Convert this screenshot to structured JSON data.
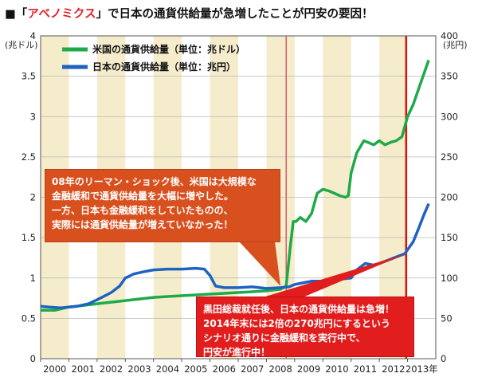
{
  "title": {
    "prefix": "■「",
    "highlight": "アベノミクス",
    "suffix": "」で日本の通貨供給量が急増したことが円安の要因！"
  },
  "chart_data": {
    "type": "line",
    "left_axis": {
      "unit": "(兆ドル)",
      "ylim": [
        0,
        4
      ],
      "ticks": [
        "0",
        "0.5",
        "1",
        "1.5",
        "2",
        "2.5",
        "3",
        "3.5",
        "4"
      ]
    },
    "right_axis": {
      "unit": "(兆円)",
      "ylim": [
        0,
        400
      ],
      "ticks": [
        "0",
        "50",
        "100",
        "150",
        "200",
        "250",
        "300",
        "350",
        "400"
      ]
    },
    "xlim": [
      2000,
      2014
    ],
    "x_ticks": [
      "2000",
      "2001",
      "2002",
      "2003",
      "2004",
      "2005",
      "2006",
      "2007",
      "2008",
      "2009",
      "2010",
      "2011",
      "2012",
      "2013年"
    ],
    "series": [
      {
        "name": "米国の通貨供給量（単位：兆ドル）",
        "axis": "left",
        "color": "#1faa4a",
        "x": [
          2000.0,
          2000.5,
          2001.0,
          2001.5,
          2002.0,
          2002.5,
          2003.0,
          2003.5,
          2004.0,
          2004.5,
          2005.0,
          2005.5,
          2006.0,
          2006.5,
          2007.0,
          2007.5,
          2008.0,
          2008.5,
          2008.7,
          2008.85,
          2008.95,
          2009.05,
          2009.2,
          2009.4,
          2009.6,
          2009.8,
          2010.0,
          2010.2,
          2010.4,
          2010.6,
          2010.8,
          2010.9,
          2011.0,
          2011.2,
          2011.45,
          2011.6,
          2011.8,
          2012.0,
          2012.2,
          2012.4,
          2012.6,
          2012.8,
          2013.0,
          2013.2,
          2013.4,
          2013.6,
          2013.75
        ],
        "values": [
          0.6,
          0.6,
          0.64,
          0.66,
          0.68,
          0.7,
          0.72,
          0.74,
          0.76,
          0.77,
          0.78,
          0.79,
          0.8,
          0.81,
          0.82,
          0.83,
          0.84,
          0.86,
          0.9,
          1.4,
          1.7,
          1.7,
          1.75,
          1.7,
          1.8,
          2.05,
          2.1,
          2.08,
          2.05,
          2.02,
          2.0,
          2.02,
          2.3,
          2.55,
          2.7,
          2.68,
          2.65,
          2.7,
          2.65,
          2.68,
          2.7,
          2.75,
          3.0,
          3.15,
          3.35,
          3.55,
          3.7
        ]
      },
      {
        "name": "日本の通貨供給量（単位：兆円）",
        "axis": "right",
        "color": "#1e63c0",
        "x": [
          2000.0,
          2000.3,
          2000.7,
          2001.0,
          2001.3,
          2001.7,
          2002.0,
          2002.5,
          2002.8,
          2003.0,
          2003.3,
          2003.7,
          2004.0,
          2004.5,
          2005.0,
          2005.5,
          2005.8,
          2006.0,
          2006.2,
          2006.5,
          2007.0,
          2007.5,
          2008.0,
          2008.5,
          2008.8,
          2009.0,
          2009.3,
          2009.6,
          2010.0,
          2010.5,
          2011.0,
          2011.2,
          2011.5,
          2011.8,
          2012.0,
          2012.3,
          2012.6,
          2012.9,
          2013.0,
          2013.2,
          2013.4,
          2013.6,
          2013.75
        ],
        "values": [
          65,
          64,
          63,
          64,
          65,
          68,
          73,
          82,
          90,
          100,
          105,
          108,
          110,
          111,
          111,
          112,
          111,
          103,
          90,
          88,
          88,
          89,
          87,
          88,
          89,
          92,
          94,
          96,
          96,
          98,
          100,
          110,
          118,
          116,
          118,
          122,
          126,
          130,
          135,
          145,
          162,
          180,
          192
        ]
      }
    ],
    "vertical_markers": [
      {
        "x": 2008.7,
        "color": "#d95b6a"
      },
      {
        "x": 2012.95,
        "color": "#e01010"
      }
    ],
    "annotations": [
      {
        "lines": [
          "08年のリーマン・ショック後、米国は大規模な",
          "金融緩和で通貨供給量を大幅に増やした。",
          "一方、日本も金融緩和をしていたものの、",
          "実際には通貨供給量が増えていなかった！"
        ],
        "color": "#d9501f",
        "points_to": [
          2008.5,
          0.9
        ]
      },
      {
        "lines": [
          "黒田総裁就任後、日本の通貨供給量は急増！",
          "2014年末には2倍の270兆円にするという",
          "シナリオ通りに金融緩和を実行中で、",
          "円安が進行中！"
        ],
        "color": "#e11d1d",
        "points_to": [
          2012.95,
          130
        ]
      }
    ],
    "background_bands": "alternating yearly beige",
    "grid": "horizontal"
  }
}
